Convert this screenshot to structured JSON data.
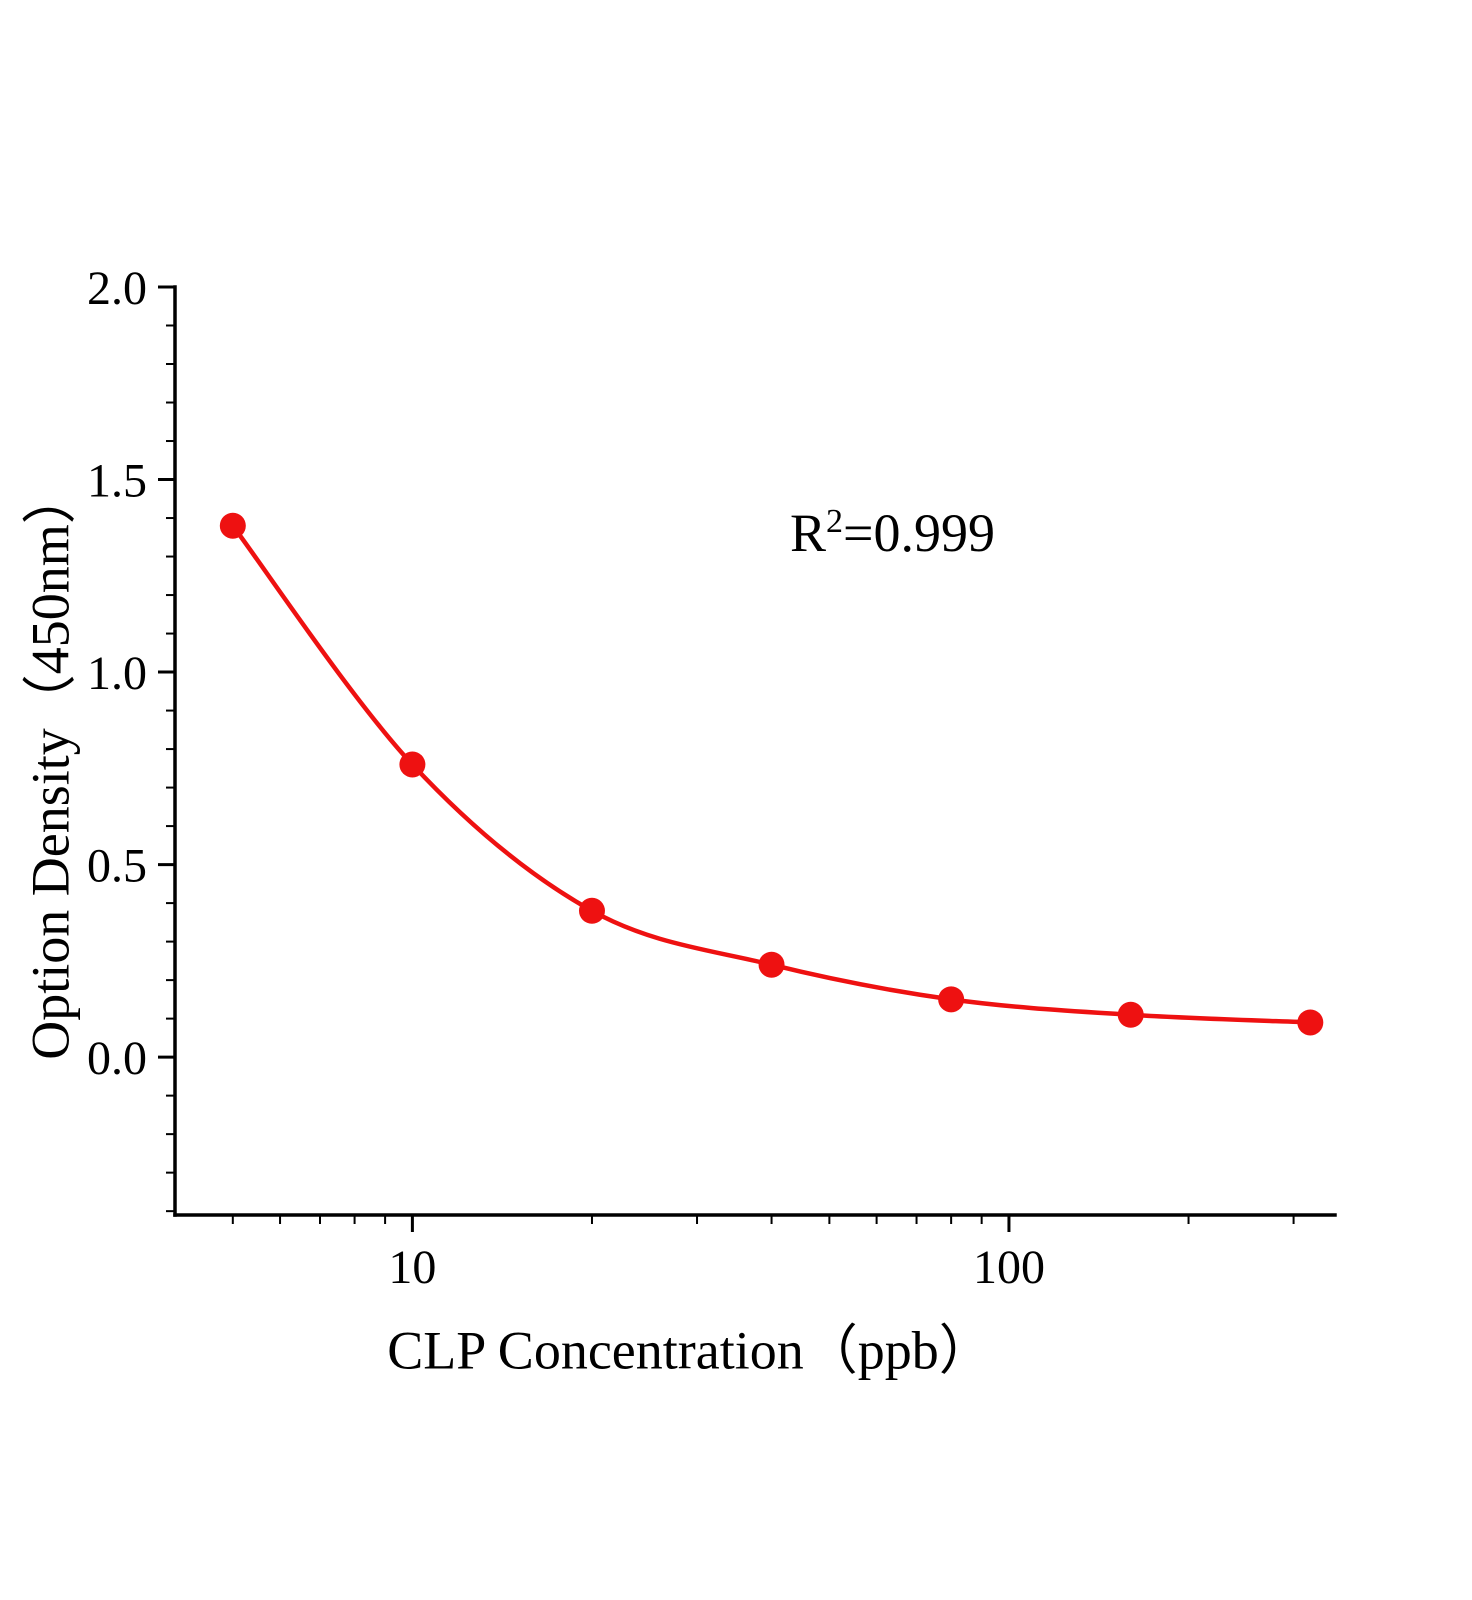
{
  "figure": {
    "background": "#ffffff",
    "annotation": {
      "base": "R",
      "sup": "2",
      "rest": "=0.999"
    }
  },
  "chart_data": {
    "type": "scatter",
    "series": [
      {
        "name": "standard-curve",
        "x": [
          5,
          10,
          20,
          40,
          80,
          160,
          320
        ],
        "y": [
          1.38,
          0.76,
          0.38,
          0.24,
          0.15,
          0.11,
          0.09
        ]
      }
    ],
    "title": "",
    "xlabel": "CLP  Concentration（ppb）",
    "ylabel": "Option Density（450nm）",
    "x_scale": "log",
    "xlim": [
      4,
      352
    ],
    "ylim": [
      -0.41,
      2.0
    ],
    "x_major_ticks": [
      10,
      100
    ],
    "x_major_tick_labels": [
      "10",
      "100"
    ],
    "y_major_ticks": [
      0.0,
      0.5,
      1.0,
      1.5,
      2.0
    ],
    "y_major_tick_labels": [
      "0.0",
      "0.5",
      "1.0",
      "1.5",
      "2.0"
    ],
    "y_minor_step": 0.1,
    "grid": false,
    "legend": false,
    "annotation_text": "R2=0.999",
    "marker_color": "#ee1111",
    "line_color": "#ee1111",
    "axis_color": "#000000",
    "tick_label_color": "#000000"
  }
}
